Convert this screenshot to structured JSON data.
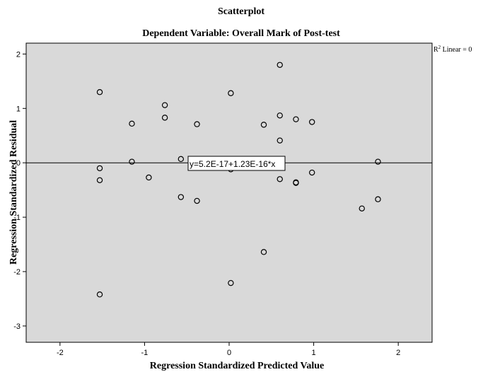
{
  "chart_data": {
    "type": "scatter",
    "title": "Scatterplot",
    "subtitle": "Dependent Variable: Overall Mark of Post-test",
    "xlabel": "Regression Standardized Predicted Value",
    "ylabel": "Regression Standardized Residual",
    "xlim": [
      -2.4,
      2.4
    ],
    "ylim": [
      -3.3,
      2.2
    ],
    "xticks": [
      "-2",
      "-1",
      "0",
      "1",
      "2"
    ],
    "yticks": [
      "2",
      "1",
      "0",
      "-1",
      "-2",
      "-3"
    ],
    "fit_line_label": "y=5.2E-17+1.23E-16*x",
    "r2_label_prefix": "R",
    "r2_label_sup": "2",
    "r2_label_suffix": " Linear = 0",
    "plot_background": "#d9d9d9",
    "points": [
      {
        "x": -1.53,
        "y": 1.3
      },
      {
        "x": -1.53,
        "y": -0.1
      },
      {
        "x": -1.53,
        "y": -0.32
      },
      {
        "x": -1.53,
        "y": -2.42
      },
      {
        "x": -1.15,
        "y": 0.72
      },
      {
        "x": -1.15,
        "y": 0.02
      },
      {
        "x": -0.95,
        "y": -0.27
      },
      {
        "x": -0.76,
        "y": 1.06
      },
      {
        "x": -0.76,
        "y": 0.83
      },
      {
        "x": -0.57,
        "y": 0.07
      },
      {
        "x": -0.57,
        "y": -0.63
      },
      {
        "x": -0.38,
        "y": 0.71
      },
      {
        "x": -0.38,
        "y": -0.7
      },
      {
        "x": 0.02,
        "y": 1.28
      },
      {
        "x": 0.02,
        "y": -0.12
      },
      {
        "x": 0.02,
        "y": -2.21
      },
      {
        "x": 0.41,
        "y": 0.7
      },
      {
        "x": 0.41,
        "y": -1.64
      },
      {
        "x": 0.6,
        "y": 1.8
      },
      {
        "x": 0.6,
        "y": 0.87
      },
      {
        "x": 0.6,
        "y": 0.41
      },
      {
        "x": 0.6,
        "y": -0.3
      },
      {
        "x": 0.79,
        "y": 0.8
      },
      {
        "x": 0.79,
        "y": -0.36
      },
      {
        "x": 0.79,
        "y": -0.37
      },
      {
        "x": 0.98,
        "y": 0.75
      },
      {
        "x": 0.98,
        "y": -0.18
      },
      {
        "x": 1.57,
        "y": -0.84
      },
      {
        "x": 1.76,
        "y": 0.02
      },
      {
        "x": 1.76,
        "y": -0.67
      }
    ]
  }
}
